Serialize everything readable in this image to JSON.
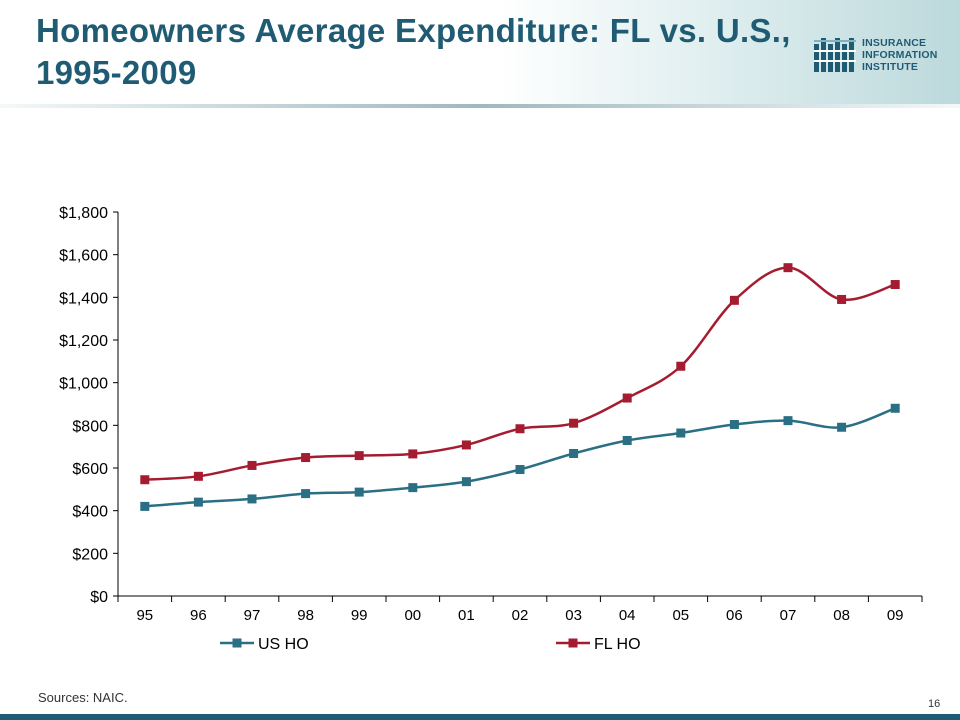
{
  "slide": {
    "title": "Homeowners Average Expenditure: FL vs. U.S., 1995-2009",
    "logo_lines": [
      "INSURANCE",
      "INFORMATION",
      "INSTITUTE"
    ],
    "source": "Sources: NAIC.",
    "page_number": "16"
  },
  "colors": {
    "title": "#1f5c73",
    "us_series": "#2a6f84",
    "fl_series": "#a51c30",
    "axis": "#000000"
  },
  "chart_data": {
    "type": "line",
    "title": "",
    "xlabel": "",
    "ylabel": "",
    "categories": [
      "95",
      "96",
      "97",
      "98",
      "99",
      "00",
      "01",
      "02",
      "03",
      "04",
      "05",
      "06",
      "07",
      "08",
      "09"
    ],
    "ylim": [
      0,
      1800
    ],
    "yticks": [
      "$0",
      "$200",
      "$400",
      "$600",
      "$800",
      "$1,000",
      "$1,200",
      "$1,400",
      "$1,600",
      "$1,800"
    ],
    "grid": false,
    "legend_position": "bottom",
    "series": [
      {
        "name": "US HO",
        "values": [
          420,
          440,
          455,
          480,
          487,
          508,
          536,
          593,
          668,
          729,
          764,
          804,
          822,
          791,
          880
        ]
      },
      {
        "name": "FL HO",
        "values": [
          545,
          561,
          612,
          649,
          658,
          666,
          708,
          784,
          810,
          928,
          1077,
          1386,
          1539,
          1390,
          1460
        ]
      }
    ]
  }
}
